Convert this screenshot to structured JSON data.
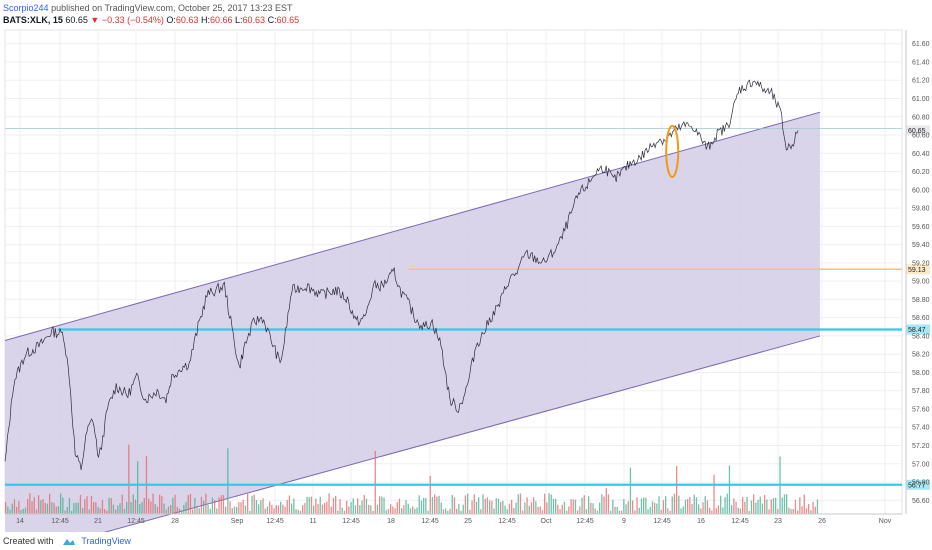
{
  "header": {
    "author": "Scorpio244",
    "published_on": "published on TradingView.com, October 25, 2017 13:23 EST",
    "symbol": "BATS:XLK, 15",
    "last": "60.65",
    "change": "−0.33 (−0.54%)",
    "o_label": "O:",
    "o_value": "60.63",
    "h_label": "H:",
    "h_value": "60.66",
    "l_label": "L:",
    "l_value": "60.63",
    "c_label": "C:",
    "c_value": "60.65"
  },
  "footer": {
    "created_with": "Created with",
    "brand": "TradingView"
  },
  "colors": {
    "channel_fill": "#d4cce6",
    "channel_line": "#7b68b3",
    "level_blue": "#38c8e8",
    "level_orange": "#f5c27a",
    "price_line": "#2c2c3a",
    "ellipse": "#f09a17",
    "volume_up": "#3fae8b",
    "volume_down": "#e26464"
  },
  "chart_data": {
    "type": "line",
    "symbol": "BATS:XLK",
    "interval": "15",
    "ylim": [
      56.45,
      61.75
    ],
    "y_ticks": [
      "61.60",
      "61.40",
      "61.20",
      "61.00",
      "60.80",
      "60.60",
      "60.40",
      "60.20",
      "60.00",
      "59.80",
      "59.60",
      "59.40",
      "59.20",
      "59.00",
      "58.80",
      "58.60",
      "58.40",
      "58.20",
      "58.00",
      "57.80",
      "57.60",
      "57.40",
      "57.20",
      "57.00",
      "56.80",
      "56.60"
    ],
    "x_ticks": [
      "14",
      "12:45",
      "21",
      "12:45",
      "28",
      "Sep",
      "12:45",
      "11",
      "12:45",
      "18",
      "12:45",
      "25",
      "12:45",
      "Oct",
      "12:45",
      "9",
      "12:45",
      "16",
      "12:45",
      "23",
      "26",
      "Nov"
    ],
    "price_path": [
      [
        0,
        57.0
      ],
      [
        6,
        57.9
      ],
      [
        14,
        58.2
      ],
      [
        24,
        58.3
      ],
      [
        32,
        58.45
      ],
      [
        40,
        58.42
      ],
      [
        44,
        57.95
      ],
      [
        48,
        57.1
      ],
      [
        52,
        56.95
      ],
      [
        56,
        57.35
      ],
      [
        60,
        57.5
      ],
      [
        64,
        57.05
      ],
      [
        66,
        57.2
      ],
      [
        70,
        57.6
      ],
      [
        76,
        57.85
      ],
      [
        84,
        57.75
      ],
      [
        90,
        57.95
      ],
      [
        96,
        57.7
      ],
      [
        104,
        57.8
      ],
      [
        110,
        57.7
      ],
      [
        114,
        57.95
      ],
      [
        120,
        58.05
      ],
      [
        126,
        58.1
      ],
      [
        132,
        58.5
      ],
      [
        138,
        58.85
      ],
      [
        144,
        58.9
      ],
      [
        150,
        58.95
      ],
      [
        156,
        58.4
      ],
      [
        160,
        58.05
      ],
      [
        164,
        58.3
      ],
      [
        170,
        58.55
      ],
      [
        176,
        58.6
      ],
      [
        182,
        58.35
      ],
      [
        188,
        58.1
      ],
      [
        190,
        58.25
      ],
      [
        196,
        58.9
      ],
      [
        206,
        58.95
      ],
      [
        216,
        58.85
      ],
      [
        226,
        58.9
      ],
      [
        234,
        58.8
      ],
      [
        240,
        58.55
      ],
      [
        246,
        58.6
      ],
      [
        252,
        58.95
      ],
      [
        258,
        58.95
      ],
      [
        266,
        59.1
      ],
      [
        270,
        58.9
      ],
      [
        276,
        58.75
      ],
      [
        280,
        58.6
      ],
      [
        286,
        58.5
      ],
      [
        292,
        58.55
      ],
      [
        298,
        58.3
      ],
      [
        304,
        57.7
      ],
      [
        310,
        57.6
      ],
      [
        316,
        57.85
      ],
      [
        322,
        58.3
      ],
      [
        326,
        58.4
      ],
      [
        332,
        58.6
      ],
      [
        338,
        58.75
      ],
      [
        344,
        59.0
      ],
      [
        350,
        59.1
      ],
      [
        356,
        59.3
      ],
      [
        362,
        59.25
      ],
      [
        368,
        59.2
      ],
      [
        374,
        59.3
      ],
      [
        380,
        59.45
      ],
      [
        386,
        59.7
      ],
      [
        392,
        59.95
      ],
      [
        398,
        60.05
      ],
      [
        404,
        60.2
      ],
      [
        410,
        60.25
      ],
      [
        416,
        60.1
      ],
      [
        422,
        60.2
      ],
      [
        428,
        60.3
      ],
      [
        434,
        60.35
      ],
      [
        440,
        60.45
      ],
      [
        446,
        60.55
      ],
      [
        452,
        60.55
      ],
      [
        458,
        60.65
      ],
      [
        464,
        60.7
      ],
      [
        470,
        60.7
      ],
      [
        476,
        60.55
      ],
      [
        480,
        60.45
      ],
      [
        486,
        60.6
      ],
      [
        494,
        60.7
      ],
      [
        502,
        61.1
      ],
      [
        508,
        61.15
      ],
      [
        512,
        61.2
      ],
      [
        518,
        61.1
      ],
      [
        524,
        61.05
      ],
      [
        530,
        60.85
      ],
      [
        534,
        60.45
      ],
      [
        538,
        60.5
      ],
      [
        542,
        60.65
      ]
    ],
    "series": [
      {
        "name": "",
        "style": "channel",
        "upper": [
          [
            0,
            58.35
          ],
          [
            557,
            60.85
          ]
        ],
        "lower": [
          [
            0,
            55.95
          ],
          [
            557,
            58.4
          ]
        ]
      },
      {
        "name": "",
        "style": "hline",
        "y": 58.47,
        "x_from": 36,
        "label": "58.47"
      },
      {
        "name": "",
        "style": "hline",
        "y": 59.13,
        "x_from": 276,
        "label": "59.13"
      },
      {
        "name": "",
        "style": "hline",
        "y": 56.77,
        "x_from": 0,
        "label": "56.77"
      },
      {
        "name": "",
        "style": "hline-thin",
        "y": 60.67,
        "x_from": 0,
        "label": ""
      }
    ],
    "annotations": [
      {
        "type": "ellipse",
        "at": [
          456,
          60.42
        ],
        "ry_price": 0.28
      }
    ],
    "volume": "bars at bottom, green up / red down",
    "grid": true,
    "price_axis": "right",
    "last_price_label": "60.65"
  }
}
